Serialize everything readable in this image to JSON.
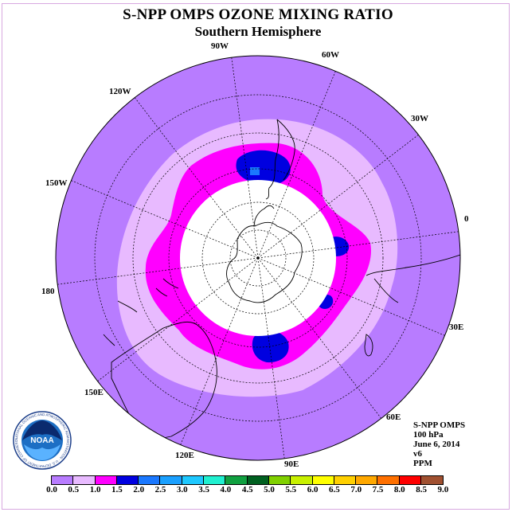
{
  "title": "S-NPP OMPS OZONE MIXING RATIO",
  "subtitle": "Southern Hemisphere",
  "longitude_labels": {
    "lon_90w": "90W",
    "lon_60w": "60W",
    "lon_30w": "30W",
    "lon_0": "0",
    "lon_30e": "30E",
    "lon_60e": "60E",
    "lon_90e": "90E",
    "lon_120e": "120E",
    "lon_150e": "150E",
    "lon_180": "180",
    "lon_150w": "150W",
    "lon_120w": "120W"
  },
  "info": {
    "instrument": "S-NPP OMPS",
    "pressure": "100 hPa",
    "date": "June 6, 2014",
    "version": "v6",
    "units": "PPM"
  },
  "logo": {
    "text": "NOAA",
    "ring_text": "NATIONAL OCEANIC AND ATMOSPHERIC ADMINISTRATION · U.S. DEPARTMENT OF COMMERCE"
  },
  "colorbar": {
    "ticks": [
      "0.0",
      "0.5",
      "1.0",
      "1.5",
      "2.0",
      "2.5",
      "3.0",
      "3.5",
      "4.0",
      "4.5",
      "5.0",
      "5.5",
      "6.0",
      "6.5",
      "7.0",
      "7.5",
      "8.0",
      "8.5",
      "9.0"
    ],
    "colors": [
      "#b87cff",
      "#e8baff",
      "#ff00ff",
      "#0000e0",
      "#1a78ff",
      "#1aa0ff",
      "#1ec8ff",
      "#20f0d0",
      "#10a040",
      "#006020",
      "#80d000",
      "#c8f000",
      "#ffff00",
      "#ffd000",
      "#ffa800",
      "#ff7000",
      "#ff0000",
      "#a05030"
    ]
  },
  "map_colors": {
    "background": "#b87cff",
    "band_0_5_1_0": "#e8baff",
    "band_1_0_1_5": "#ff00ff",
    "band_1_5_2_0": "#0000e0",
    "band_2_0_2_5": "#1a78ff",
    "no_data": "#ffffff"
  }
}
